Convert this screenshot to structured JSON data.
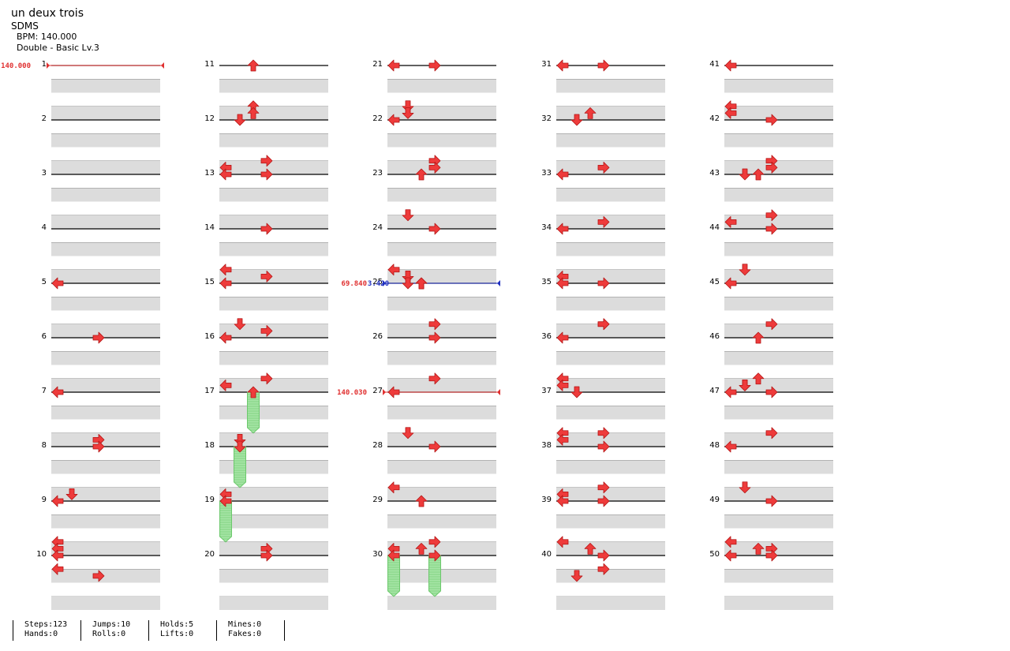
{
  "song": {
    "title": "un deux trois",
    "artist": "SDMS",
    "bpm_text": "BPM: 140.000",
    "difficulty_text": "Double - Basic  Lv.3"
  },
  "bpm_changes": [
    {
      "measure": 1,
      "beat": 0,
      "label": "140.000",
      "color": "#e03030"
    },
    {
      "measure": 25,
      "beat": 0,
      "label": "69.840",
      "color": "#e03030",
      "label2": "3.420",
      "color2": "#2030c0"
    },
    {
      "measure": 27,
      "beat": 0,
      "label": "140.030",
      "color": "#e03030"
    }
  ],
  "notes": [
    [
      5,
      0,
      "L"
    ],
    [
      6,
      0,
      "R"
    ],
    [
      7,
      0,
      "L"
    ],
    [
      8,
      -0.5,
      "R"
    ],
    [
      8,
      0,
      "R"
    ],
    [
      9,
      -0.5,
      "D"
    ],
    [
      9,
      0,
      "L"
    ],
    [
      10,
      -1,
      "L"
    ],
    [
      10,
      -0.5,
      "L"
    ],
    [
      10,
      0,
      "L"
    ],
    [
      10,
      1,
      "L"
    ],
    [
      10,
      1.5,
      "R"
    ],
    [
      11,
      0,
      "U"
    ],
    [
      12,
      -1,
      "U"
    ],
    [
      12,
      -0.5,
      "U"
    ],
    [
      12,
      0,
      "D"
    ],
    [
      13,
      -1,
      "R"
    ],
    [
      13,
      -0.5,
      "L"
    ],
    [
      13,
      0,
      "L"
    ],
    [
      13,
      0,
      "R"
    ],
    [
      14,
      0,
      "R"
    ],
    [
      15,
      -1,
      "L"
    ],
    [
      15,
      -0.5,
      "R"
    ],
    [
      15,
      0,
      "L"
    ],
    [
      16,
      -1,
      "D"
    ],
    [
      16,
      -0.5,
      "R"
    ],
    [
      16,
      0,
      "L"
    ],
    [
      17,
      -1,
      "R"
    ],
    [
      17,
      -0.5,
      "L"
    ],
    [
      17,
      0,
      "U"
    ],
    [
      18,
      -0.5,
      "D"
    ],
    [
      18,
      0,
      "D"
    ],
    [
      19,
      -0.5,
      "L"
    ],
    [
      19,
      0,
      "L"
    ],
    [
      20,
      -0.5,
      "R"
    ],
    [
      20,
      0,
      "R"
    ],
    [
      21,
      0,
      "L"
    ],
    [
      21,
      0,
      "R"
    ],
    [
      22,
      -1,
      "D"
    ],
    [
      22,
      -0.5,
      "D"
    ],
    [
      22,
      0,
      "L"
    ],
    [
      23,
      -1,
      "R"
    ],
    [
      23,
      -0.5,
      "R"
    ],
    [
      23,
      0,
      "U"
    ],
    [
      24,
      -1,
      "D"
    ],
    [
      24,
      0,
      "R"
    ],
    [
      25,
      -1,
      "L"
    ],
    [
      25,
      -0.5,
      "D"
    ],
    [
      25,
      0,
      "U"
    ],
    [
      25,
      0,
      "U"
    ],
    [
      25,
      0,
      "D"
    ],
    [
      26,
      -1,
      "R"
    ],
    [
      26,
      0,
      "R"
    ],
    [
      27,
      -1,
      "R"
    ],
    [
      27,
      0,
      "L"
    ],
    [
      28,
      -1,
      "D"
    ],
    [
      28,
      0,
      "R"
    ],
    [
      29,
      -1,
      "L"
    ],
    [
      29,
      0,
      "U"
    ],
    [
      30,
      -1,
      "R"
    ],
    [
      30,
      -0.5,
      "L"
    ],
    [
      30,
      -0.5,
      "U"
    ],
    [
      30,
      0,
      "L"
    ],
    [
      30,
      0,
      "R"
    ],
    [
      31,
      0,
      "L"
    ],
    [
      31,
      0,
      "R"
    ],
    [
      32,
      -0.5,
      "U"
    ],
    [
      32,
      0,
      "D"
    ],
    [
      33,
      -0.5,
      "R"
    ],
    [
      33,
      0,
      "L"
    ],
    [
      34,
      -0.5,
      "R"
    ],
    [
      34,
      0,
      "L"
    ],
    [
      35,
      -0.5,
      "L"
    ],
    [
      35,
      0,
      "L"
    ],
    [
      35,
      0,
      "R"
    ],
    [
      36,
      -1,
      "R"
    ],
    [
      36,
      -1,
      "R"
    ],
    [
      36,
      0,
      "L"
    ],
    [
      37,
      -1,
      "L"
    ],
    [
      37,
      -0.5,
      "L"
    ],
    [
      37,
      0,
      "D"
    ],
    [
      38,
      -1,
      "R"
    ],
    [
      38,
      -1,
      "L"
    ],
    [
      38,
      -0.5,
      "L"
    ],
    [
      38,
      0,
      "R"
    ],
    [
      39,
      -1,
      "R"
    ],
    [
      39,
      -0.5,
      "L"
    ],
    [
      39,
      0,
      "L"
    ],
    [
      39,
      0,
      "R"
    ],
    [
      40,
      -1,
      "L"
    ],
    [
      40,
      -0.5,
      "U"
    ],
    [
      40,
      0,
      "R"
    ],
    [
      40,
      1,
      "R"
    ],
    [
      40,
      1.5,
      "D"
    ],
    [
      41,
      0,
      "L"
    ],
    [
      42,
      -1,
      "L"
    ],
    [
      42,
      -0.5,
      "L"
    ],
    [
      42,
      0,
      "R"
    ],
    [
      43,
      -1,
      "R"
    ],
    [
      43,
      -0.5,
      "R"
    ],
    [
      43,
      0,
      "D"
    ],
    [
      43,
      0,
      "U"
    ],
    [
      44,
      -1,
      "R"
    ],
    [
      44,
      -0.5,
      "L"
    ],
    [
      44,
      0,
      "R"
    ],
    [
      45,
      -1,
      "D"
    ],
    [
      45,
      0,
      "L"
    ],
    [
      46,
      -1,
      "R"
    ],
    [
      46,
      0,
      "U"
    ],
    [
      47,
      -1,
      "U"
    ],
    [
      47,
      -0.5,
      "D"
    ],
    [
      47,
      -0.5,
      "D"
    ],
    [
      47,
      0,
      "L"
    ],
    [
      47,
      0,
      "R"
    ],
    [
      48,
      -1,
      "R"
    ],
    [
      48,
      0,
      "L"
    ],
    [
      49,
      -1,
      "D"
    ],
    [
      49,
      0,
      "R"
    ],
    [
      50,
      -1,
      "L"
    ],
    [
      50,
      -0.5,
      "U"
    ],
    [
      50,
      -0.5,
      "R"
    ],
    [
      50,
      0,
      "L"
    ],
    [
      50,
      0,
      "R"
    ]
  ],
  "holds": [
    [
      17,
      0,
      "U",
      1
    ],
    [
      18,
      0,
      "D",
      1
    ],
    [
      19,
      0,
      "L",
      1
    ],
    [
      30,
      0,
      "L",
      1
    ],
    [
      30,
      0,
      "R",
      1
    ]
  ],
  "stats": {
    "steps": "Steps:123",
    "hands": "Hands:0",
    "jumps": "Jumps:10",
    "rolls": "Rolls:0",
    "holds": "Holds:5",
    "lifts": "Lifts:0",
    "mines": "Mines:0",
    "fakes": "Fakes:0"
  },
  "colors": {
    "note": "#ee3b3b",
    "hold_body": "#a6e5a6",
    "hold_stripe": "#6cc86c",
    "row_shade": "#dcdcdc",
    "measure_line": "#000000",
    "bpm_up": "#e03030",
    "bpm_down": "#2030c0"
  }
}
